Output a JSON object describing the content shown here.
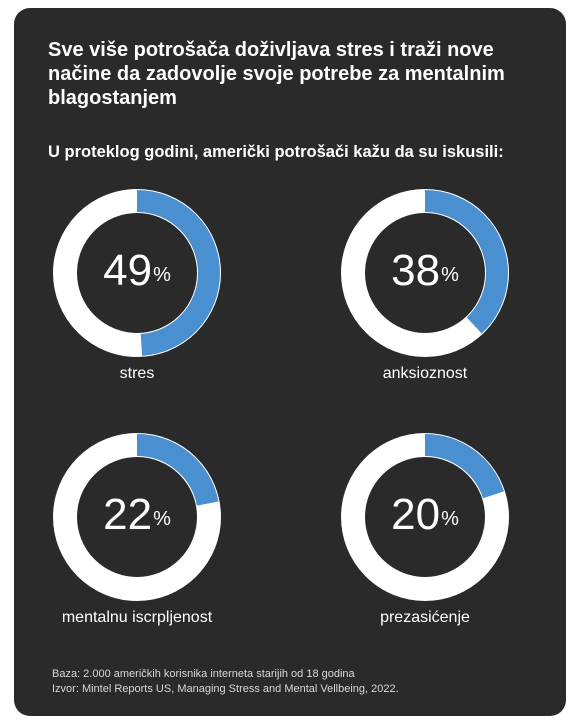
{
  "title": "Sve više potrošača doživljava stres i traži nove načine da zadovolje svoje potrebe za mentalnim blagostanjem",
  "subtitle": "U proteklog godini, američki potrošači kažu da su iskusili:",
  "footnote": {
    "base": "Baza: 2.000 američkih korisnika interneta starijih od 18 godina",
    "source": "Izvor: Mintel Reports US, Managing Stress and Mental Vellbeing, 2022."
  },
  "colors": {
    "background": "#2a2a2a",
    "ring": "#ffffff",
    "fill": "#4a90d0",
    "text": "#ffffff"
  },
  "chart_data": {
    "type": "pie",
    "unit": "%",
    "items": [
      {
        "label": "stres",
        "value": 49
      },
      {
        "label": "anksioznost",
        "value": 38
      },
      {
        "label": "mentalnu iscrpljenost",
        "value": 22
      },
      {
        "label": "prezasićenje",
        "value": 20
      }
    ]
  }
}
